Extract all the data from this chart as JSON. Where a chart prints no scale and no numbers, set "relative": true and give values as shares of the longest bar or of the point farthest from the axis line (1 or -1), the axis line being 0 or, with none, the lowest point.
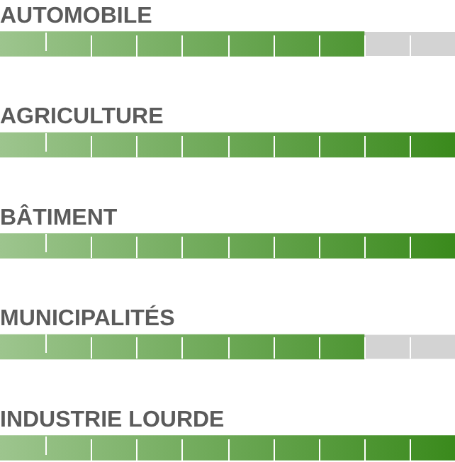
{
  "chart_data": {
    "type": "bar",
    "orientation": "horizontal",
    "relative": true,
    "categories": [
      "AUTOMOBILE",
      "AGRICULTURE",
      "BÂTIMENT",
      "MUNICIPALITÉS",
      "INDUSTRIE LOURDE"
    ],
    "values": [
      0.8,
      1,
      1,
      0.8,
      1
    ],
    "color": "#3a8a1c"
  }
}
